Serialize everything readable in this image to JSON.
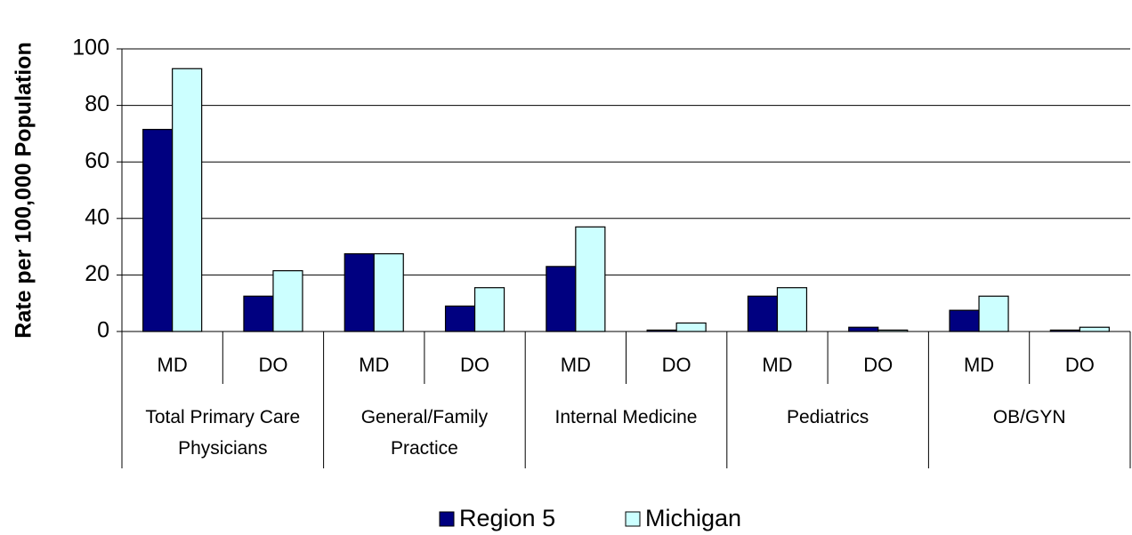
{
  "chart_data": {
    "type": "bar",
    "y_label": "Rate per 100,000 Population",
    "groups": [
      {
        "name": "Total Primary Care Physicians",
        "categories": [
          "MD",
          "DO"
        ]
      },
      {
        "name": "General/Family Practice",
        "categories": [
          "MD",
          "DO"
        ]
      },
      {
        "name": "Internal Medicine",
        "categories": [
          "MD",
          "DO"
        ]
      },
      {
        "name": "Pediatrics",
        "categories": [
          "MD",
          "DO"
        ]
      },
      {
        "name": "OB/GYN",
        "categories": [
          "MD",
          "DO"
        ]
      }
    ],
    "series": [
      {
        "name": "Region 5",
        "color": "#000080",
        "values": [
          71.5,
          12.5,
          27.5,
          9,
          23,
          0.5,
          12.5,
          1.5,
          7.5,
          0.5
        ]
      },
      {
        "name": "Michigan",
        "color": "#ccffff",
        "values": [
          93,
          21.5,
          27.5,
          15.5,
          37,
          3,
          15.5,
          0.5,
          12.5,
          1.5
        ]
      }
    ],
    "ylim": [
      0,
      100
    ],
    "yticks": [
      0,
      20,
      40,
      60,
      80,
      100
    ],
    "grid": true,
    "legend": "bottom"
  }
}
